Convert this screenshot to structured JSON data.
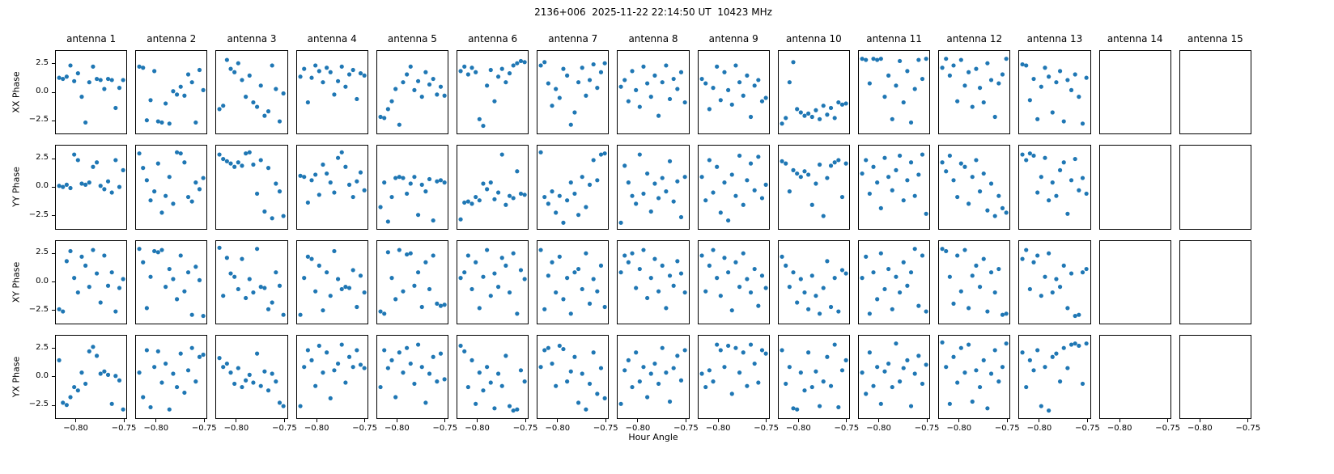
{
  "chart_data": {
    "type": "scatter",
    "title": "2136+006  2025-11-22 22:14:50 UT  10423 MHz",
    "xlabel": "Hour Angle",
    "row_labels": [
      "XX Phase",
      "YY Phase",
      "XY Phase",
      "YX Phase"
    ],
    "col_labels": [
      "antenna 1",
      "antenna 2",
      "antenna 3",
      "antenna 4",
      "antenna 5",
      "antenna 6",
      "antenna 7",
      "antenna 8",
      "antenna 9",
      "antenna 10",
      "antenna 11",
      "antenna 12",
      "antenna 13",
      "antenna 14",
      "antenna 15"
    ],
    "empty_antennas": [
      "antenna 14",
      "antenna 15"
    ],
    "xlim": [
      -0.8215,
      -0.7465
    ],
    "ylim": [
      -3.7,
      3.7
    ],
    "xticks": [
      -0.8,
      -0.75
    ],
    "xtick_labels": [
      "−0.80",
      "−0.75"
    ],
    "yticks": [
      2.5,
      0.0,
      -2.5
    ],
    "ytick_labels": [
      "2.5",
      "0.0",
      "−2.5"
    ],
    "marker_color": "#1f77b4",
    "grid": false,
    "legend": false,
    "x": [
      -0.818,
      -0.814,
      -0.81,
      -0.806,
      -0.802,
      -0.798,
      -0.794,
      -0.79,
      -0.786,
      -0.782,
      -0.778,
      -0.774,
      -0.77,
      -0.766,
      -0.762,
      -0.758,
      -0.754,
      -0.75
    ],
    "rows": [
      {
        "label": "XX Phase",
        "y_by_antenna": [
          [
            1.3,
            1.2,
            1.4,
            2.4,
            1.0,
            1.7,
            -0.4,
            -2.7,
            0.9,
            2.3,
            1.2,
            1.1,
            0.3,
            1.2,
            1.1,
            -1.4,
            0.4,
            1.1
          ],
          [
            2.3,
            2.2,
            -2.5,
            -0.7,
            1.9,
            -2.6,
            -2.7,
            -1.0,
            -2.8,
            0.1,
            -0.2,
            0.5,
            -0.3,
            1.6,
            0.9,
            -2.7,
            2.0,
            0.2
          ],
          [
            -1.5,
            -1.2,
            2.9,
            2.1,
            1.8,
            2.6,
            1.1,
            -0.4,
            1.5,
            -0.9,
            -1.3,
            0.6,
            -2.1,
            -1.7,
            2.4,
            0.3,
            -2.6,
            -0.1
          ],
          [
            1.4,
            2.1,
            -0.9,
            1.3,
            2.4,
            1.9,
            0.9,
            2.2,
            1.8,
            -0.2,
            1.0,
            2.3,
            0.5,
            1.6,
            2.0,
            -0.6,
            1.7,
            1.5
          ],
          [
            -2.2,
            -2.3,
            -1.5,
            -0.8,
            0.3,
            -2.9,
            0.9,
            1.6,
            2.3,
            0.2,
            1.0,
            -0.4,
            1.8,
            0.7,
            1.2,
            -0.2,
            0.5,
            -0.3
          ],
          [
            1.9,
            2.3,
            1.6,
            2.2,
            1.8,
            -2.4,
            -3.0,
            0.6,
            2.0,
            -0.8,
            1.4,
            2.1,
            0.9,
            1.7,
            2.4,
            2.6,
            2.8,
            2.7
          ],
          [
            2.4,
            2.7,
            0.8,
            -1.2,
            0.3,
            -0.5,
            2.1,
            1.5,
            -2.9,
            -1.8,
            0.9,
            2.2,
            -0.3,
            1.1,
            2.5,
            0.4,
            1.8,
            2.6
          ],
          [
            0.5,
            1.1,
            -0.8,
            1.9,
            0.2,
            -1.3,
            2.3,
            0.8,
            -0.4,
            1.5,
            -2.1,
            0.9,
            2.4,
            -0.6,
            1.2,
            0.3,
            1.8,
            -0.9
          ],
          [
            1.2,
            0.8,
            -1.5,
            0.4,
            2.3,
            -0.7,
            1.8,
            0.2,
            -1.1,
            2.4,
            0.9,
            -0.3,
            1.5,
            -2.2,
            0.6,
            1.1,
            -0.8,
            -0.5
          ],
          [
            -2.8,
            -2.3,
            0.9,
            2.7,
            -1.5,
            -1.8,
            -2.1,
            -1.9,
            -2.2,
            -1.6,
            -2.4,
            -1.2,
            -2.0,
            -1.4,
            -2.3,
            -0.9,
            -1.1,
            -1.0
          ],
          [
            3.0,
            2.9,
            0.8,
            3.0,
            2.9,
            3.0,
            -0.4,
            1.5,
            -2.4,
            0.6,
            2.8,
            -0.9,
            1.9,
            -2.7,
            0.3,
            2.9,
            1.2,
            3.0
          ],
          [
            2.2,
            3.0,
            1.5,
            2.4,
            -0.8,
            2.9,
            0.6,
            1.8,
            -1.3,
            2.1,
            0.4,
            -0.9,
            2.6,
            1.1,
            -2.2,
            0.8,
            1.6,
            3.0
          ],
          [
            2.5,
            2.4,
            -0.7,
            1.2,
            -2.4,
            0.5,
            2.2,
            1.4,
            -1.8,
            0.9,
            1.9,
            -2.6,
            1.1,
            0.2,
            1.6,
            -0.4,
            -2.8,
            1.3
          ],
          null,
          null
        ]
      },
      {
        "label": "YY Phase",
        "y_by_antenna": [
          [
            0.1,
            0.0,
            0.2,
            -0.1,
            2.9,
            2.4,
            0.3,
            0.2,
            0.4,
            1.8,
            2.2,
            0.1,
            -0.2,
            0.5,
            -0.5,
            2.4,
            0.0,
            1.5
          ],
          [
            3.0,
            1.7,
            0.6,
            -1.2,
            -0.4,
            2.1,
            -2.3,
            -0.8,
            0.9,
            -1.5,
            3.1,
            3.0,
            2.2,
            -0.9,
            -1.3,
            0.4,
            -0.2,
            0.8
          ],
          [
            2.9,
            2.5,
            2.3,
            2.1,
            1.8,
            2.2,
            1.9,
            3.0,
            3.1,
            2.0,
            -0.6,
            2.4,
            -2.2,
            1.7,
            -2.8,
            0.3,
            -0.4,
            -2.6
          ],
          [
            1.0,
            0.9,
            -1.4,
            0.6,
            1.1,
            -0.7,
            2.0,
            1.2,
            0.4,
            -0.5,
            2.6,
            3.1,
            1.8,
            0.2,
            -0.9,
            0.5,
            1.3,
            -0.3
          ],
          [
            -1.8,
            0.4,
            -3.1,
            -0.9,
            0.8,
            0.9,
            0.8,
            -0.6,
            0.3,
            0.9,
            -2.5,
            0.2,
            -0.4,
            0.7,
            -3.0,
            0.5,
            0.6,
            0.4
          ],
          [
            -2.9,
            -1.4,
            -1.3,
            -1.5,
            -0.9,
            -1.2,
            0.3,
            -0.2,
            0.4,
            -1.1,
            -0.5,
            2.9,
            -1.6,
            -0.8,
            -1.0,
            1.4,
            -0.6,
            -0.7
          ],
          [
            3.1,
            -0.9,
            -1.5,
            -0.4,
            -2.3,
            -0.8,
            -3.2,
            -1.2,
            0.4,
            -0.6,
            -2.5,
            0.9,
            -1.8,
            0.2,
            2.4,
            0.6,
            2.9,
            3.0
          ],
          [
            -3.2,
            1.9,
            0.4,
            -0.8,
            -1.5,
            2.9,
            -0.6,
            1.2,
            -2.2,
            0.3,
            -1.0,
            0.8,
            -0.4,
            2.3,
            -1.3,
            0.5,
            -2.7,
            0.9
          ],
          [
            0.9,
            -1.2,
            2.4,
            -0.5,
            1.8,
            -2.3,
            0.4,
            -3.0,
            1.1,
            -0.8,
            2.8,
            -1.6,
            0.6,
            2.1,
            -0.3,
            2.7,
            -1.0,
            0.2
          ],
          [
            2.3,
            2.1,
            -0.4,
            1.5,
            1.2,
            0.9,
            1.4,
            1.1,
            -1.6,
            0.3,
            2.0,
            -2.6,
            0.8,
            1.9,
            2.2,
            2.4,
            -0.9,
            2.1
          ],
          [
            1.2,
            2.4,
            -0.6,
            1.8,
            0.4,
            -1.9,
            2.6,
            0.9,
            -0.3,
            1.5,
            2.8,
            -1.2,
            0.6,
            2.2,
            -0.8,
            1.1,
            2.9,
            -2.4
          ],
          [
            2.2,
            1.4,
            2.8,
            0.6,
            -0.9,
            2.1,
            1.8,
            -1.5,
            0.9,
            2.4,
            -0.4,
            1.2,
            -2.1,
            0.3,
            -2.6,
            -0.8,
            -1.9,
            -2.3
          ],
          [
            2.9,
            2.4,
            3.0,
            2.8,
            -0.5,
            0.9,
            2.6,
            -1.2,
            0.4,
            -0.8,
            1.5,
            2.2,
            -2.4,
            0.6,
            2.5,
            -0.3,
            0.8,
            -0.6
          ],
          null,
          null
        ]
      },
      {
        "label": "XY Phase",
        "y_by_antenna": [
          [
            -2.4,
            -2.6,
            1.9,
            2.8,
            0.4,
            -0.9,
            2.3,
            1.5,
            -0.4,
            2.9,
            0.8,
            -1.8,
            2.4,
            -0.3,
            0.9,
            -2.6,
            -0.5,
            0.3
          ],
          [
            3.0,
            1.8,
            -2.3,
            0.5,
            2.8,
            2.7,
            2.9,
            -0.4,
            1.2,
            0.3,
            -1.5,
            2.4,
            -0.8,
            0.9,
            -2.9,
            1.4,
            0.2,
            -3.0
          ],
          [
            3.1,
            -1.2,
            2.2,
            0.8,
            0.5,
            -0.6,
            2.1,
            -1.4,
            0.3,
            -0.9,
            3.0,
            -0.4,
            -0.5,
            -2.4,
            -1.8,
            0.9,
            -0.3,
            -2.9
          ],
          [
            -2.9,
            0.4,
            2.3,
            2.1,
            -0.8,
            1.5,
            -2.5,
            0.9,
            -1.2,
            2.8,
            0.3,
            -0.6,
            -0.4,
            -0.5,
            1.1,
            -2.2,
            0.6,
            -0.9
          ],
          [
            -2.6,
            -2.8,
            2.7,
            0.4,
            -1.5,
            2.9,
            -0.8,
            2.5,
            2.6,
            -0.3,
            0.9,
            -2.2,
            1.8,
            -0.6,
            2.4,
            -1.9,
            -2.1,
            -2.0
          ],
          [
            0.4,
            0.9,
            2.4,
            -0.6,
            1.8,
            -2.3,
            0.5,
            2.9,
            -1.2,
            0.8,
            -0.4,
            2.2,
            1.5,
            -0.9,
            2.6,
            -2.8,
            1.1,
            0.3
          ],
          [
            2.9,
            -2.4,
            0.6,
            1.8,
            -0.9,
            2.3,
            -1.5,
            0.4,
            -2.8,
            0.9,
            1.2,
            -0.6,
            2.6,
            -1.9,
            0.3,
            -0.8,
            1.5,
            -2.2
          ],
          [
            0.9,
            2.4,
            1.8,
            2.6,
            -0.5,
            1.2,
            2.9,
            -1.4,
            0.4,
            2.1,
            -0.8,
            1.5,
            -2.3,
            0.6,
            -0.3,
            1.9,
            0.8,
            -0.9
          ],
          [
            2.4,
            -0.8,
            1.5,
            2.9,
            0.4,
            -1.2,
            2.2,
            0.9,
            -2.5,
            1.8,
            -0.4,
            2.6,
            0.3,
            -0.9,
            1.2,
            -2.1,
            0.6,
            -0.5
          ],
          [
            2.3,
            1.5,
            -0.4,
            0.9,
            -1.8,
            0.3,
            -0.9,
            -2.4,
            0.6,
            -1.2,
            -2.8,
            -0.5,
            1.9,
            -2.2,
            0.4,
            -2.6,
            1.1,
            0.8
          ],
          [
            0.4,
            2.3,
            -2.8,
            0.9,
            -1.5,
            2.6,
            -0.6,
            1.2,
            -2.4,
            0.5,
            -0.9,
            1.8,
            -0.3,
            0.9,
            3.0,
            -2.1,
            2.4,
            -2.6
          ],
          [
            3.0,
            2.8,
            0.5,
            -1.9,
            2.4,
            -0.8,
            2.9,
            -2.3,
            0.6,
            1.5,
            -0.4,
            2.1,
            -2.6,
            0.9,
            -0.9,
            1.2,
            -2.9,
            -2.8
          ],
          [
            2.1,
            2.9,
            -0.6,
            1.8,
            2.4,
            -1.2,
            0.5,
            2.6,
            -0.9,
            0.3,
            -0.4,
            1.5,
            -2.3,
            0.8,
            -3.0,
            -2.9,
            0.9,
            1.2
          ],
          null,
          null
        ]
      },
      {
        "label": "YX Phase",
        "y_by_antenna": [
          [
            1.5,
            -2.3,
            -2.5,
            -1.8,
            -0.9,
            -1.2,
            0.4,
            -0.6,
            2.3,
            2.7,
            1.9,
            0.3,
            0.5,
            0.2,
            -2.4,
            0.1,
            -0.3,
            -2.9
          ],
          [
            0.4,
            -1.8,
            2.4,
            -2.7,
            0.9,
            2.3,
            -0.5,
            1.2,
            -2.9,
            0.3,
            -0.9,
            2.1,
            -1.4,
            0.6,
            2.6,
            -0.4,
            1.8,
            2.0
          ],
          [
            1.7,
            0.9,
            1.2,
            0.4,
            -0.6,
            0.8,
            -0.9,
            -0.3,
            0.2,
            -0.5,
            2.1,
            -0.8,
            0.5,
            -1.2,
            0.3,
            -0.4,
            -2.3,
            -2.6
          ],
          [
            -2.6,
            0.9,
            2.4,
            1.5,
            -0.8,
            2.8,
            0.4,
            2.2,
            -1.9,
            0.6,
            1.2,
            2.9,
            -0.5,
            1.8,
            0.9,
            2.4,
            1.1,
            0.8
          ],
          [
            -0.9,
            2.4,
            0.8,
            1.5,
            -1.8,
            2.2,
            0.4,
            2.6,
            1.2,
            -0.6,
            2.9,
            0.9,
            -2.3,
            0.3,
            1.8,
            -0.4,
            2.1,
            -0.2
          ],
          [
            2.8,
            2.3,
            -0.9,
            1.5,
            -2.4,
            0.4,
            -1.2,
            0.9,
            -0.5,
            -2.8,
            0.3,
            -0.8,
            1.9,
            -2.6,
            -3.0,
            -2.9,
            0.6,
            -0.4
          ],
          [
            0.9,
            2.4,
            2.6,
            1.2,
            -0.8,
            2.8,
            2.5,
            -0.4,
            0.5,
            1.8,
            -2.3,
            0.3,
            -2.9,
            -0.6,
            2.2,
            -1.5,
            0.8,
            -1.9
          ],
          [
            -2.4,
            0.6,
            1.5,
            -0.9,
            2.2,
            -0.4,
            0.9,
            -1.8,
            0.3,
            1.2,
            -0.6,
            2.6,
            0.4,
            -2.2,
            0.8,
            1.9,
            -0.3,
            2.4
          ],
          [
            0.3,
            -0.9,
            0.6,
            -0.4,
            2.9,
            2.4,
            0.9,
            2.8,
            -1.5,
            2.6,
            0.4,
            2.2,
            -0.8,
            2.9,
            1.2,
            -0.5,
            2.4,
            2.1
          ],
          [
            2.4,
            -0.6,
            0.9,
            -2.8,
            -2.9,
            0.4,
            -1.2,
            2.2,
            -0.9,
            0.5,
            -2.6,
            -0.4,
            1.8,
            -0.8,
            2.9,
            -2.7,
            0.6,
            1.5
          ],
          [
            0.4,
            -1.5,
            2.2,
            -0.8,
            0.9,
            -2.4,
            0.5,
            1.2,
            -0.9,
            3.0,
            -0.4,
            0.8,
            1.5,
            -2.6,
            0.3,
            1.9,
            -0.6,
            1.1
          ],
          [
            3.1,
            0.9,
            -2.4,
            1.8,
            -0.5,
            2.6,
            0.4,
            2.9,
            -2.2,
            0.6,
            -0.9,
            1.5,
            -2.8,
            0.3,
            2.4,
            -0.4,
            0.9,
            3.0
          ],
          [
            2.2,
            -0.9,
            1.5,
            0.6,
            2.4,
            -2.6,
            0.9,
            -3.0,
            1.8,
            2.1,
            -0.4,
            2.6,
            0.8,
            2.9,
            3.0,
            2.8,
            -0.6,
            3.0
          ],
          null,
          null
        ]
      }
    ]
  }
}
